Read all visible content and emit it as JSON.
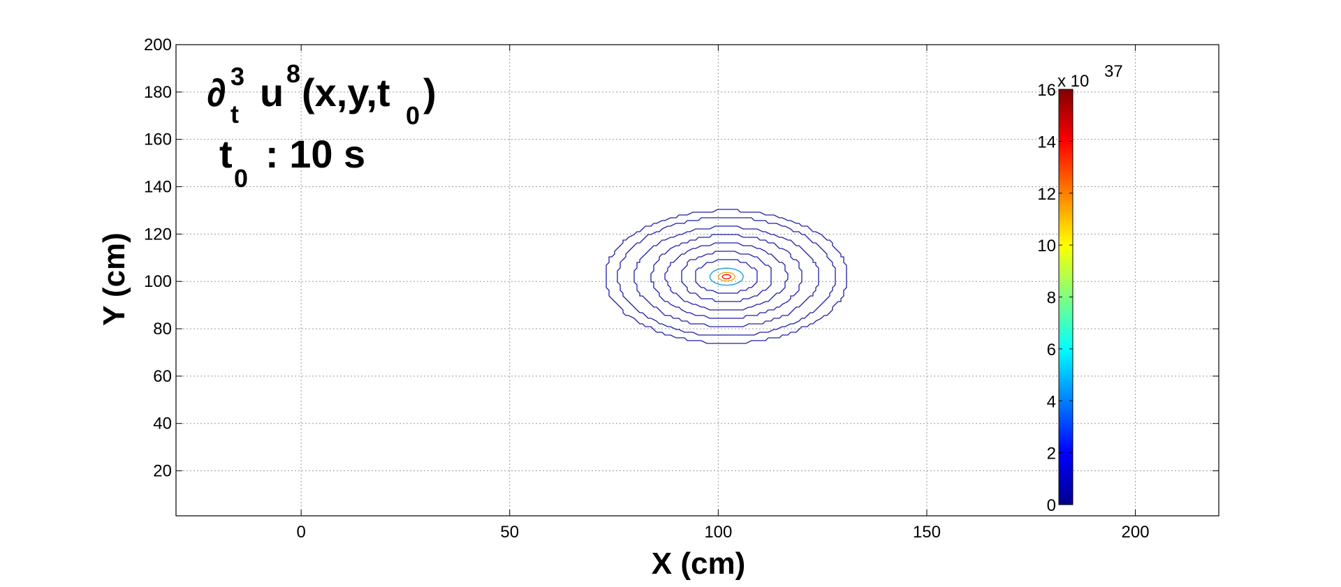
{
  "chart_data": {
    "type": "contour",
    "title": "",
    "xlabel": "X (cm)",
    "ylabel": "Y (cm)",
    "xlim": [
      -30,
      220
    ],
    "ylim": [
      1,
      200
    ],
    "xticks": [
      0,
      50,
      100,
      150,
      200
    ],
    "yticks": [
      20,
      40,
      60,
      80,
      100,
      120,
      140,
      160,
      180,
      200
    ],
    "grid": true,
    "annotation": {
      "line1": {
        "op": "∂",
        "op_sub": "t",
        "op_sup": "3",
        "var": "u",
        "var_sup": "8",
        "args_pre": "(x,y,t",
        "args_sub": "0",
        "args_post": ")"
      },
      "line2": {
        "t": "t",
        "t_sub": "0",
        "text": ": 10 s"
      }
    },
    "contours": {
      "center": [
        102,
        102
      ],
      "rx": [
        29,
        26,
        22,
        18,
        14.5,
        11,
        7.5,
        4,
        2,
        1
      ],
      "ry": [
        28,
        25,
        21,
        17.5,
        14,
        10.5,
        7,
        3.6,
        1.8,
        0.9
      ],
      "level_colors": [
        "#1e1ea8",
        "#1e1ea8",
        "#1e1ea8",
        "#1e1ea8",
        "#1e1ea8",
        "#1e1ea8",
        "#1e1ea8",
        "#0a9cd8",
        "#f2a000",
        "#ff0000"
      ]
    },
    "colorbar": {
      "multiplier": "x 10",
      "exponent": "37",
      "ticks": [
        0,
        2,
        4,
        6,
        8,
        10,
        12,
        14,
        16
      ],
      "range": [
        0,
        16
      ],
      "colormap": "jet"
    }
  }
}
